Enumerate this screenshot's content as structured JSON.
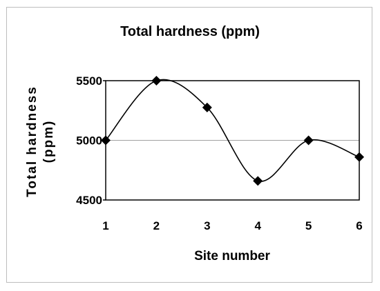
{
  "chart_data": {
    "type": "line",
    "title": "Total hardness (ppm)",
    "xlabel": "Site number",
    "ylabel_lines": [
      "Total hardness",
      "(ppm)"
    ],
    "x": [
      1,
      2,
      3,
      4,
      5,
      6
    ],
    "x_tick_labels": [
      "1",
      "2",
      "3",
      "4",
      "5",
      "6"
    ],
    "y_tick_labels": [
      "4500",
      "5000",
      "5500"
    ],
    "y_ticks": [
      4500,
      5000,
      5500
    ],
    "ylim": [
      4500,
      5500
    ],
    "grid": "horizontal at 5000",
    "legend": "none",
    "series": [
      {
        "values": [
          5000,
          5500,
          5275,
          4660,
          5000,
          4860
        ],
        "marker": "diamond",
        "smooth": true,
        "color": "#000000"
      }
    ]
  }
}
